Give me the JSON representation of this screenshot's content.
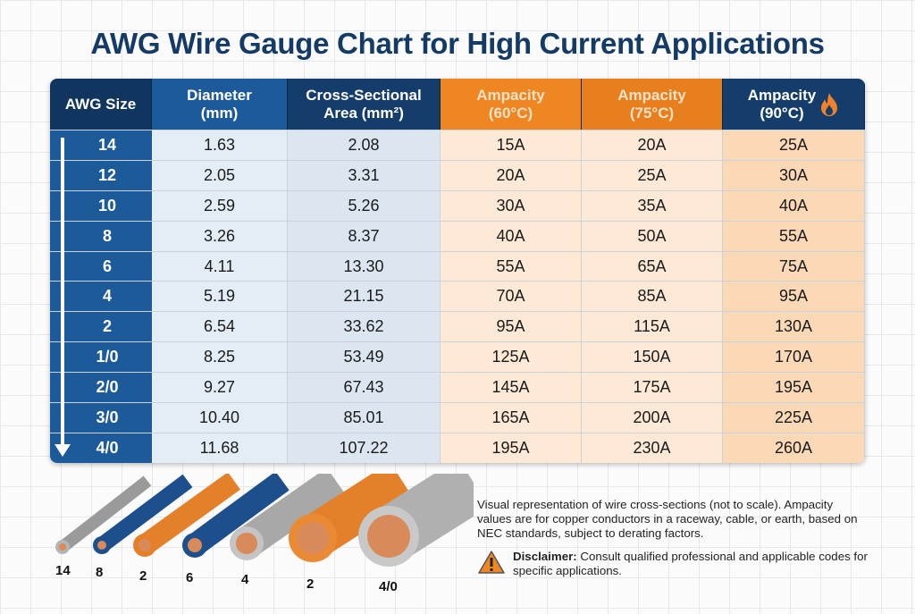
{
  "title": "AWG Wire Gauge Chart for High Current Applications",
  "headers": [
    {
      "l1": "AWG Size",
      "l2": ""
    },
    {
      "l1": "Diameter",
      "l2": "(mm)"
    },
    {
      "l1": "Cross-Sectional",
      "l2": "Area (mm²)"
    },
    {
      "l1": "Ampacity",
      "l2": "(60°C)"
    },
    {
      "l1": "Ampacity",
      "l2": "(75°C)"
    },
    {
      "l1": "Ampacity",
      "l2": "(90°C)"
    }
  ],
  "rows": [
    [
      "14",
      "1.63",
      "2.08",
      "15A",
      "20A",
      "25A"
    ],
    [
      "12",
      "2.05",
      "3.31",
      "20A",
      "25A",
      "30A"
    ],
    [
      "10",
      "2.59",
      "5.26",
      "30A",
      "35A",
      "40A"
    ],
    [
      "8",
      "3.26",
      "8.37",
      "40A",
      "50A",
      "55A"
    ],
    [
      "6",
      "4.11",
      "13.30",
      "55A",
      "65A",
      "75A"
    ],
    [
      "4",
      "5.19",
      "21.15",
      "70A",
      "85A",
      "95A"
    ],
    [
      "2",
      "6.54",
      "33.62",
      "95A",
      "115A",
      "130A"
    ],
    [
      "1/0",
      "8.25",
      "53.49",
      "125A",
      "150A",
      "170A"
    ],
    [
      "2/0",
      "9.27",
      "67.43",
      "145A",
      "175A",
      "195A"
    ],
    [
      "3/0",
      "10.40",
      "85.01",
      "165A",
      "200A",
      "225A"
    ],
    [
      "4/0",
      "11.68",
      "107.22",
      "195A",
      "230A",
      "260A"
    ]
  ],
  "wire_labels": [
    "14",
    "8",
    "2",
    "6",
    "4",
    "2",
    "4/0"
  ],
  "note": "Visual representation of wire cross-sections (not to scale). Ampacity values are for copper conductors in a raceway, cable, or earth, based on NEC standards, subject to derating factors.",
  "disclaimer_label": "Disclaimer:",
  "disclaimer_text": " Consult qualified professional and applicable codes for specific applications.",
  "colors": {
    "navy": "#143d6b",
    "blue": "#1c5a9c",
    "orange": "#ee8622",
    "copper": "#d98a5a"
  }
}
